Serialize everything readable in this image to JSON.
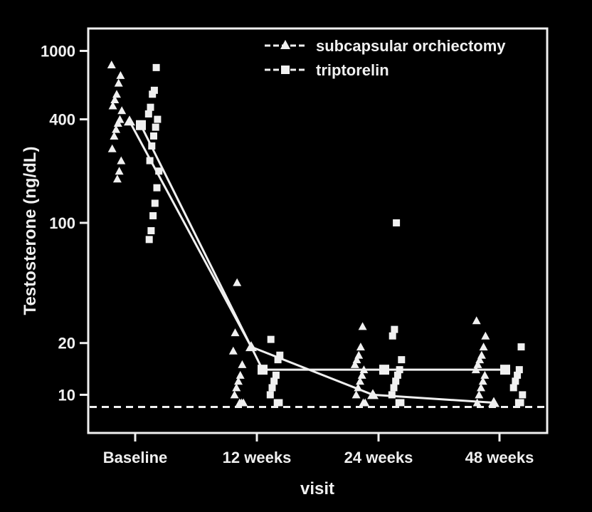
{
  "chart_data": {
    "type": "line",
    "xlabel": "visit",
    "ylabel": "Testosterone (ng/dL)",
    "y_scale": "log",
    "ylim": [
      6,
      1350
    ],
    "y_ticks": [
      {
        "value": 10,
        "label": "10"
      },
      {
        "value": 20,
        "label": "20"
      },
      {
        "value": 100,
        "label": "100"
      },
      {
        "value": 400,
        "label": "400"
      },
      {
        "value": 1000,
        "label": "1000"
      }
    ],
    "categories": [
      "Baseline",
      "12 weeks",
      "24 weeks",
      "48 weeks"
    ],
    "reference_line": {
      "value": 8.5,
      "style": "dashed"
    },
    "grid": false,
    "legend_position": "top-right",
    "series": [
      {
        "name": "subcapsular orchiectomy",
        "marker": "triangle",
        "values": [
          390,
          19,
          10,
          9
        ],
        "points": [
          [
            830,
            720,
            650,
            560,
            520,
            480,
            450,
            400,
            380,
            350,
            320,
            270,
            230,
            200,
            180
          ],
          [
            45,
            23,
            18,
            15,
            13,
            12,
            11,
            10,
            9,
            9,
            9
          ],
          [
            25,
            19,
            17,
            16,
            15,
            14,
            13,
            12,
            11,
            10,
            9,
            9
          ],
          [
            27,
            22,
            19,
            17,
            16,
            15,
            14,
            13,
            12,
            11,
            10,
            9
          ]
        ]
      },
      {
        "name": "triptorelin",
        "marker": "square",
        "values": [
          370,
          14,
          14,
          14
        ],
        "points": [
          [
            800,
            590,
            560,
            470,
            430,
            400,
            360,
            320,
            280,
            230,
            200,
            160,
            130,
            110,
            90,
            80
          ],
          [
            21,
            17,
            16,
            13,
            12,
            11,
            10,
            9,
            9
          ],
          [
            100,
            24,
            22,
            16,
            14,
            13,
            12,
            11,
            10,
            9,
            9
          ],
          [
            19,
            14,
            13,
            12,
            11,
            10,
            9,
            9
          ]
        ]
      }
    ]
  },
  "colors": {
    "background": "#000000",
    "foreground": "#f0f0f0"
  }
}
